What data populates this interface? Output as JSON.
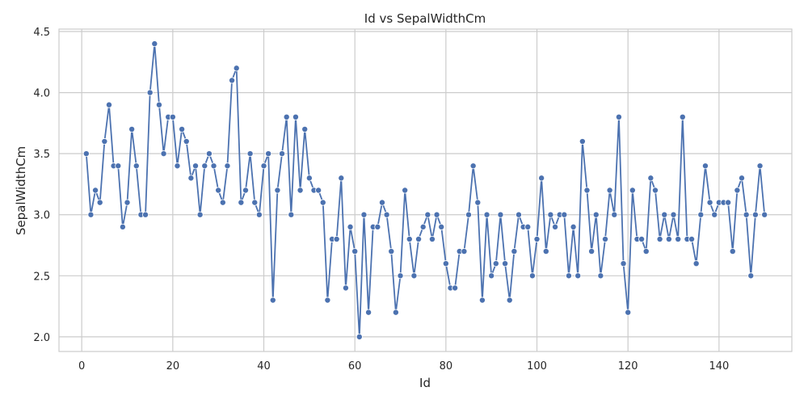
{
  "chart_data": {
    "type": "line",
    "title": "Id vs SepalWidthCm",
    "xlabel": "Id",
    "ylabel": "SepalWidthCm",
    "xlim": [
      -5,
      156
    ],
    "ylim": [
      1.88,
      4.52
    ],
    "x_ticks": [
      0,
      20,
      40,
      60,
      80,
      100,
      120,
      140
    ],
    "y_ticks": [
      2.0,
      2.5,
      3.0,
      3.5,
      4.0,
      4.5
    ],
    "x_tick_labels": [
      "0",
      "20",
      "40",
      "60",
      "80",
      "100",
      "120",
      "140"
    ],
    "y_tick_labels": [
      "2.0",
      "2.5",
      "3.0",
      "3.5",
      "4.0",
      "4.5"
    ],
    "grid": true,
    "marker": "circle",
    "series": [
      {
        "color": "#4c72b0",
        "x": [
          1,
          2,
          3,
          4,
          5,
          6,
          7,
          8,
          9,
          10,
          11,
          12,
          13,
          14,
          15,
          16,
          17,
          18,
          19,
          20,
          21,
          22,
          23,
          24,
          25,
          26,
          27,
          28,
          29,
          30,
          31,
          32,
          33,
          34,
          35,
          36,
          37,
          38,
          39,
          40,
          41,
          42,
          43,
          44,
          45,
          46,
          47,
          48,
          49,
          50,
          51,
          52,
          53,
          54,
          55,
          56,
          57,
          58,
          59,
          60,
          61,
          62,
          63,
          64,
          65,
          66,
          67,
          68,
          69,
          70,
          71,
          72,
          73,
          74,
          75,
          76,
          77,
          78,
          79,
          80,
          81,
          82,
          83,
          84,
          85,
          86,
          87,
          88,
          89,
          90,
          91,
          92,
          93,
          94,
          95,
          96,
          97,
          98,
          99,
          100,
          101,
          102,
          103,
          104,
          105,
          106,
          107,
          108,
          109,
          110,
          111,
          112,
          113,
          114,
          115,
          116,
          117,
          118,
          119,
          120,
          121,
          122,
          123,
          124,
          125,
          126,
          127,
          128,
          129,
          130,
          131,
          132,
          133,
          134,
          135,
          136,
          137,
          138,
          139,
          140,
          141,
          142,
          143,
          144,
          145,
          146,
          147,
          148,
          149,
          150
        ],
        "y": [
          3.5,
          3.0,
          3.2,
          3.1,
          3.6,
          3.9,
          3.4,
          3.4,
          2.9,
          3.1,
          3.7,
          3.4,
          3.0,
          3.0,
          4.0,
          4.4,
          3.9,
          3.5,
          3.8,
          3.8,
          3.4,
          3.7,
          3.6,
          3.3,
          3.4,
          3.0,
          3.4,
          3.5,
          3.4,
          3.2,
          3.1,
          3.4,
          4.1,
          4.2,
          3.1,
          3.2,
          3.5,
          3.1,
          3.0,
          3.4,
          3.5,
          2.3,
          3.2,
          3.5,
          3.8,
          3.0,
          3.8,
          3.2,
          3.7,
          3.3,
          3.2,
          3.2,
          3.1,
          2.3,
          2.8,
          2.8,
          3.3,
          2.4,
          2.9,
          2.7,
          2.0,
          3.0,
          2.2,
          2.9,
          2.9,
          3.1,
          3.0,
          2.7,
          2.2,
          2.5,
          3.2,
          2.8,
          2.5,
          2.8,
          2.9,
          3.0,
          2.8,
          3.0,
          2.9,
          2.6,
          2.4,
          2.4,
          2.7,
          2.7,
          3.0,
          3.4,
          3.1,
          2.3,
          3.0,
          2.5,
          2.6,
          3.0,
          2.6,
          2.3,
          2.7,
          3.0,
          2.9,
          2.9,
          2.5,
          2.8,
          3.3,
          2.7,
          3.0,
          2.9,
          3.0,
          3.0,
          2.5,
          2.9,
          2.5,
          3.6,
          3.2,
          2.7,
          3.0,
          2.5,
          2.8,
          3.2,
          3.0,
          3.8,
          2.6,
          2.2,
          3.2,
          2.8,
          2.8,
          2.7,
          3.3,
          3.2,
          2.8,
          3.0,
          2.8,
          3.0,
          2.8,
          3.8,
          2.8,
          2.8,
          2.6,
          3.0,
          3.4,
          3.1,
          3.0,
          3.1,
          3.1,
          3.1,
          2.7,
          3.2,
          3.3,
          3.0,
          2.5,
          3.0,
          3.4,
          3.0
        ]
      }
    ]
  }
}
